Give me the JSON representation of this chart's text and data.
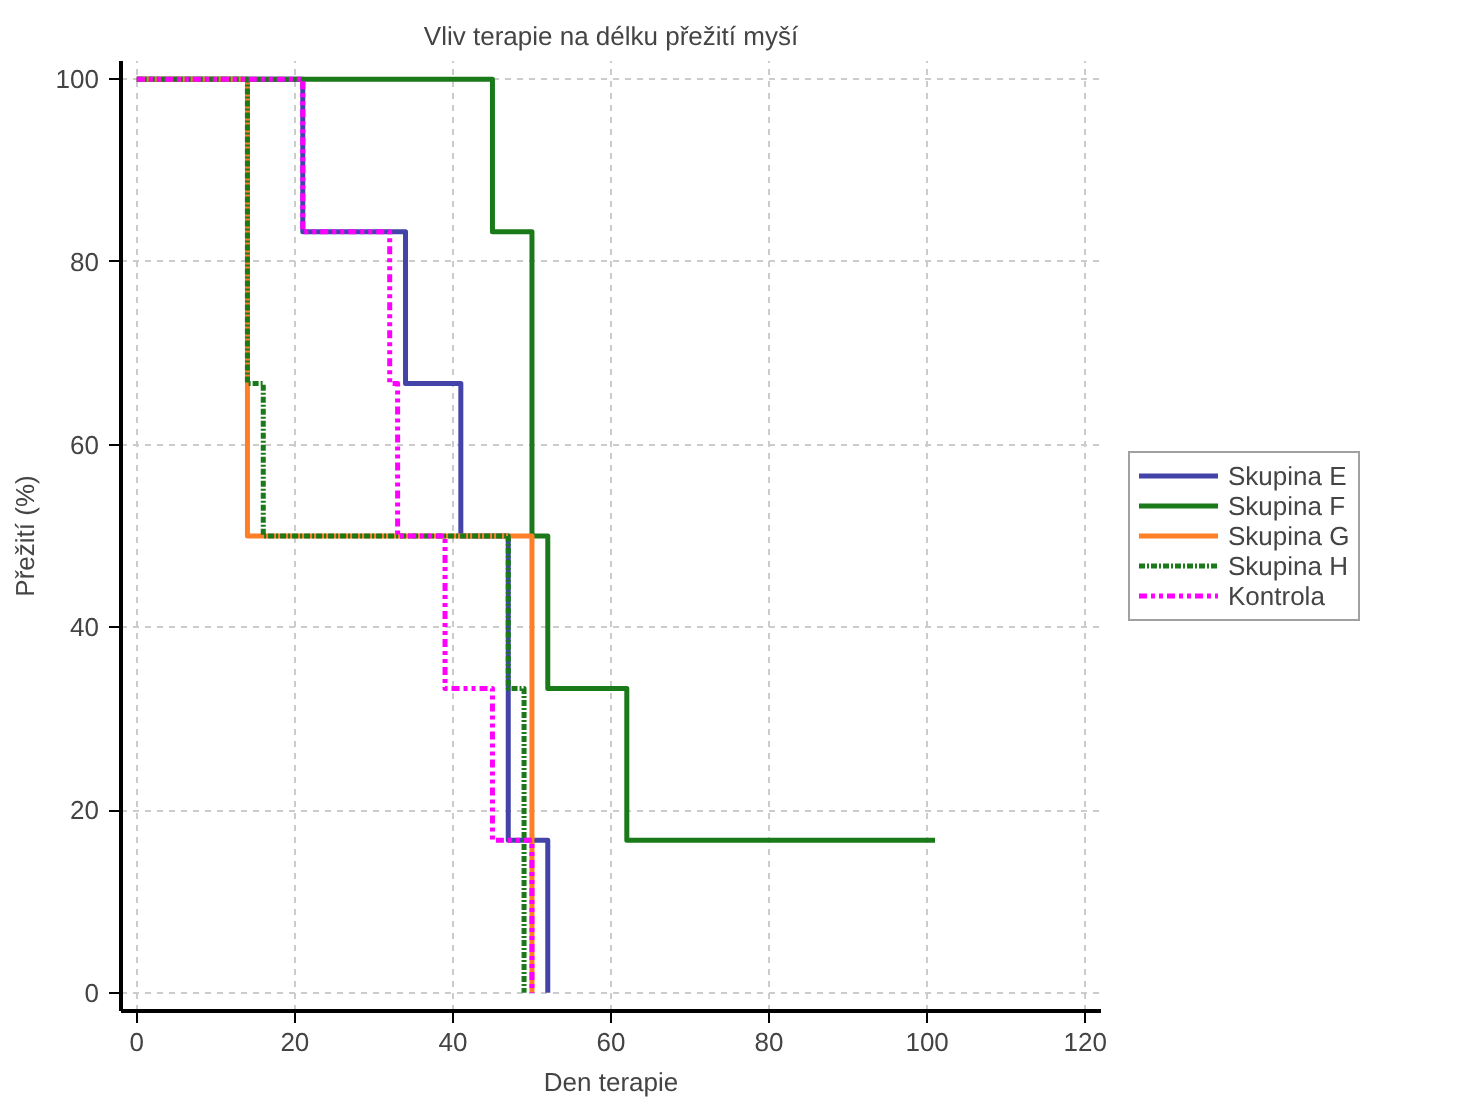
{
  "chart_data": {
    "type": "step",
    "title": "Vliv terapie na délku přežití myší",
    "xlabel": "Den terapie",
    "ylabel": "Přežití (%)",
    "series": [
      {
        "name": "Skupina E",
        "color": "#4444a8",
        "line_style": "solid",
        "x": [
          0,
          21,
          34,
          41,
          47,
          52
        ],
        "values": [
          100,
          83.3,
          66.7,
          50,
          16.7,
          0
        ]
      },
      {
        "name": "Skupina F",
        "color": "#1a7a1a",
        "line_style": "solid",
        "x": [
          0,
          45,
          50,
          52,
          62,
          101
        ],
        "values": [
          100,
          83.3,
          50,
          33.3,
          16.7,
          16.7
        ]
      },
      {
        "name": "Skupina G",
        "color": "#ff7f27",
        "line_style": "solid",
        "x": [
          0,
          14,
          50
        ],
        "values": [
          100,
          50,
          0
        ]
      },
      {
        "name": "Skupina H",
        "color": "#1a7a1a",
        "line_style": "dashdot",
        "x": [
          0,
          14,
          16,
          47,
          49
        ],
        "values": [
          100,
          66.7,
          50,
          33.3,
          0
        ]
      },
      {
        "name": "Kontrola",
        "color": "#ff00ff",
        "line_style": "dashdotdot",
        "x": [
          0,
          21,
          32,
          33,
          39,
          45,
          50
        ],
        "values": [
          100,
          83.3,
          66.7,
          50,
          33.3,
          16.7,
          0
        ]
      }
    ],
    "xlim": [
      -2,
      122
    ],
    "ylim": [
      -2,
      102
    ],
    "xticks": [
      0,
      20,
      40,
      60,
      80,
      100,
      120
    ],
    "yticks": [
      0,
      20,
      40,
      60,
      80,
      100
    ],
    "grid": true,
    "legend": "right",
    "marker": "none"
  }
}
